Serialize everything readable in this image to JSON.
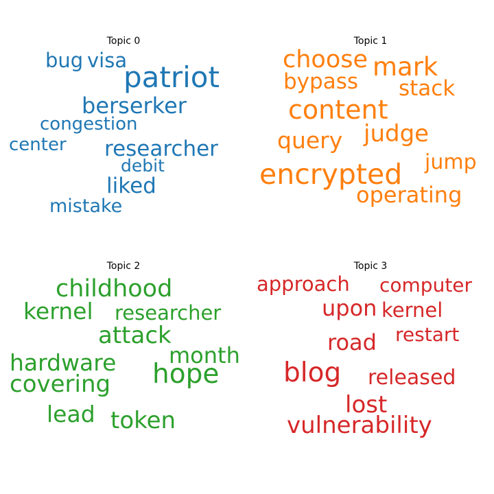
{
  "chart_data": {
    "type": "wordcloud",
    "topics": [
      {
        "title": "Topic 0",
        "color": "#1f77b4",
        "words": [
          "bug",
          "visa",
          "patriot",
          "berserker",
          "congestion",
          "center",
          "researcher",
          "debit",
          "liked",
          "mistake"
        ]
      },
      {
        "title": "Topic 1",
        "color": "#ff7f0e",
        "words": [
          "choose",
          "mark",
          "bypass",
          "stack",
          "content",
          "judge",
          "query",
          "jump",
          "encrypted",
          "operating"
        ]
      },
      {
        "title": "Topic 2",
        "color": "#2ca02c",
        "words": [
          "childhood",
          "kernel",
          "researcher",
          "attack",
          "month",
          "hardware",
          "hope",
          "covering",
          "lead",
          "token"
        ]
      },
      {
        "title": "Topic 3",
        "color": "#d62728",
        "words": [
          "approach",
          "computer",
          "upon",
          "kernel",
          "restart",
          "road",
          "blog",
          "released",
          "lost",
          "vulnerability"
        ]
      }
    ]
  }
}
